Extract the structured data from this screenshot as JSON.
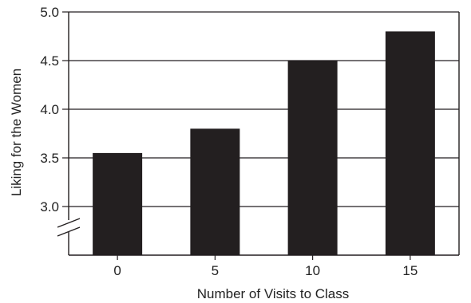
{
  "chart_data": {
    "type": "bar",
    "categories": [
      "0",
      "5",
      "10",
      "15"
    ],
    "values": [
      3.55,
      3.8,
      4.5,
      4.8
    ],
    "xlabel": "Number of Visits to Class",
    "ylabel": "Liking for the Women",
    "ylim": [
      2.5,
      5.0
    ],
    "yticks": [
      "3.0",
      "3.5",
      "4.0",
      "4.5",
      "5.0"
    ],
    "axis_break": true,
    "grid": "horizontal",
    "bar_color": "#231f20",
    "line_color": "#231f20"
  }
}
